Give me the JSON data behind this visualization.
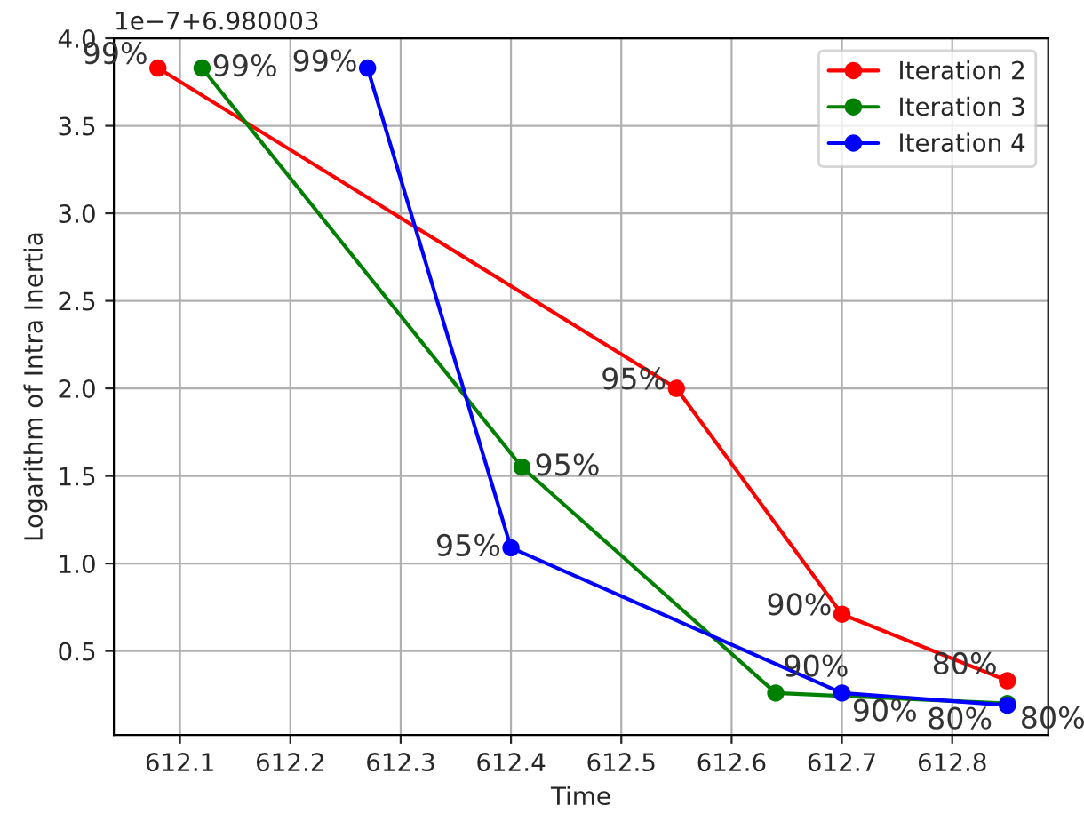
{
  "chart_data": {
    "type": "line",
    "xlabel": "Time",
    "ylabel": "Logarithm of Intra Inertia",
    "annotations": [
      "1e−7+6.980003",
      {
        "text": "99%",
        "x": 612.08,
        "y": 3.83
      },
      {
        "text": "95%",
        "x": 612.55,
        "y": 2.0
      },
      {
        "text": "90%",
        "x": 612.7,
        "y": 0.71
      },
      {
        "text": "80%",
        "x": 612.85,
        "y": 0.33
      },
      {
        "text": "99%",
        "x": 612.12,
        "y": 3.83
      },
      {
        "text": "95%",
        "x": 612.41,
        "y": 1.55
      },
      {
        "text": "90%",
        "x": 612.64,
        "y": 0.26
      },
      {
        "text": "80%",
        "x": 612.85,
        "y": 0.2
      },
      {
        "text": "99%",
        "x": 612.27,
        "y": 3.83
      },
      {
        "text": "95%",
        "x": 612.4,
        "y": 1.09
      },
      {
        "text": "90%",
        "x": 612.7,
        "y": 0.26
      },
      {
        "text": "80%",
        "x": 612.85,
        "y": 0.19
      }
    ],
    "xlim": [
      612.04,
      612.887
    ],
    "xticks": [
      612.1,
      612.2,
      612.3,
      612.4,
      612.5,
      612.6,
      612.7,
      612.8
    ],
    "ylim": [
      0.02,
      4.0
    ],
    "yticks": [
      0.5,
      {
        "value": 1,
        "label": "1.0"
      },
      1.5,
      {
        "value": 2,
        "label": "2.0"
      },
      2.5,
      {
        "value": 3,
        "label": "3.0"
      },
      3.5,
      {
        "value": 4,
        "label": "4.0"
      }
    ],
    "grid": true,
    "legend": "top right",
    "marker": "circle",
    "line_style": "solid",
    "series": [
      {
        "name": "Iteration 2",
        "color": "#ff0000",
        "x": [
          612.08,
          612.55,
          612.7,
          612.85
        ],
        "values": [
          3.83,
          2.0,
          0.71,
          0.33
        ]
      },
      {
        "name": "Iteration 3",
        "color": "#008000",
        "x": [
          612.12,
          612.41,
          612.64,
          612.85
        ],
        "values": [
          3.83,
          1.55,
          0.26,
          0.2
        ]
      },
      {
        "name": "Iteration 4",
        "color": "#0000ff",
        "x": [
          612.27,
          612.4,
          612.7,
          612.85
        ],
        "values": [
          3.83,
          1.09,
          0.26,
          0.19
        ]
      }
    ]
  }
}
